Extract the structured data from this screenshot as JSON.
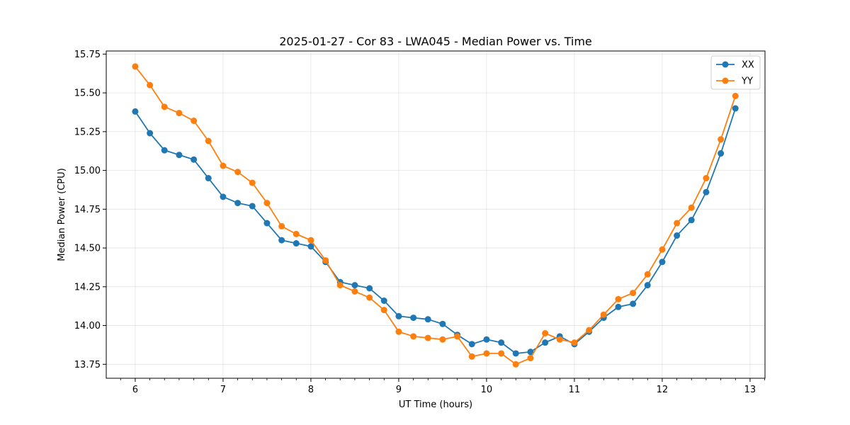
{
  "chart_data": {
    "type": "line",
    "title": "2025-01-27 - Cor 83 - LWA045 - Median Power vs. Time",
    "xlabel": "UT Time (hours)",
    "ylabel": "Median Power (CPU)",
    "xlim": [
      5.67,
      13.17
    ],
    "ylim": [
      13.66,
      15.77
    ],
    "xticks": [
      6,
      7,
      8,
      9,
      10,
      11,
      12,
      13
    ],
    "xtick_labels": [
      "6",
      "7",
      "8",
      "9",
      "10",
      "11",
      "12",
      "13"
    ],
    "yticks": [
      13.75,
      14.0,
      14.25,
      14.5,
      14.75,
      15.0,
      15.25,
      15.5,
      15.75
    ],
    "ytick_labels": [
      "13.75",
      "14.00",
      "14.25",
      "14.50",
      "14.75",
      "15.00",
      "15.25",
      "15.50",
      "15.75"
    ],
    "grid": true,
    "legend_position": "top-right",
    "x": [
      6.0,
      6.167,
      6.333,
      6.5,
      6.667,
      6.833,
      7.0,
      7.167,
      7.333,
      7.5,
      7.667,
      7.833,
      8.0,
      8.167,
      8.333,
      8.5,
      8.667,
      8.833,
      9.0,
      9.167,
      9.333,
      9.5,
      9.667,
      9.833,
      10.0,
      10.167,
      10.333,
      10.5,
      10.667,
      10.833,
      11.0,
      11.167,
      11.333,
      11.5,
      11.667,
      11.833,
      12.0,
      12.167,
      12.333,
      12.5,
      12.667,
      12.833
    ],
    "series": [
      {
        "name": "XX",
        "color": "#1f77b4",
        "values": [
          15.38,
          15.24,
          15.13,
          15.1,
          15.07,
          14.95,
          14.83,
          14.79,
          14.77,
          14.66,
          14.55,
          14.53,
          14.51,
          14.41,
          14.28,
          14.26,
          14.24,
          14.16,
          14.06,
          14.05,
          14.04,
          14.01,
          13.94,
          13.88,
          13.91,
          13.89,
          13.82,
          13.83,
          13.89,
          13.93,
          13.88,
          13.96,
          14.05,
          14.12,
          14.14,
          14.26,
          14.41,
          14.58,
          14.68,
          14.86,
          15.11,
          15.4
        ]
      },
      {
        "name": "YY",
        "color": "#ff7f0e",
        "values": [
          15.67,
          15.55,
          15.41,
          15.37,
          15.32,
          15.19,
          15.03,
          14.99,
          14.92,
          14.79,
          14.64,
          14.59,
          14.55,
          14.42,
          14.26,
          14.22,
          14.18,
          14.1,
          13.96,
          13.93,
          13.92,
          13.91,
          13.93,
          13.8,
          13.82,
          13.82,
          13.75,
          13.79,
          13.95,
          13.91,
          13.89,
          13.97,
          14.07,
          14.17,
          14.21,
          14.33,
          14.49,
          14.66,
          14.76,
          14.95,
          15.2,
          15.48
        ]
      }
    ]
  }
}
